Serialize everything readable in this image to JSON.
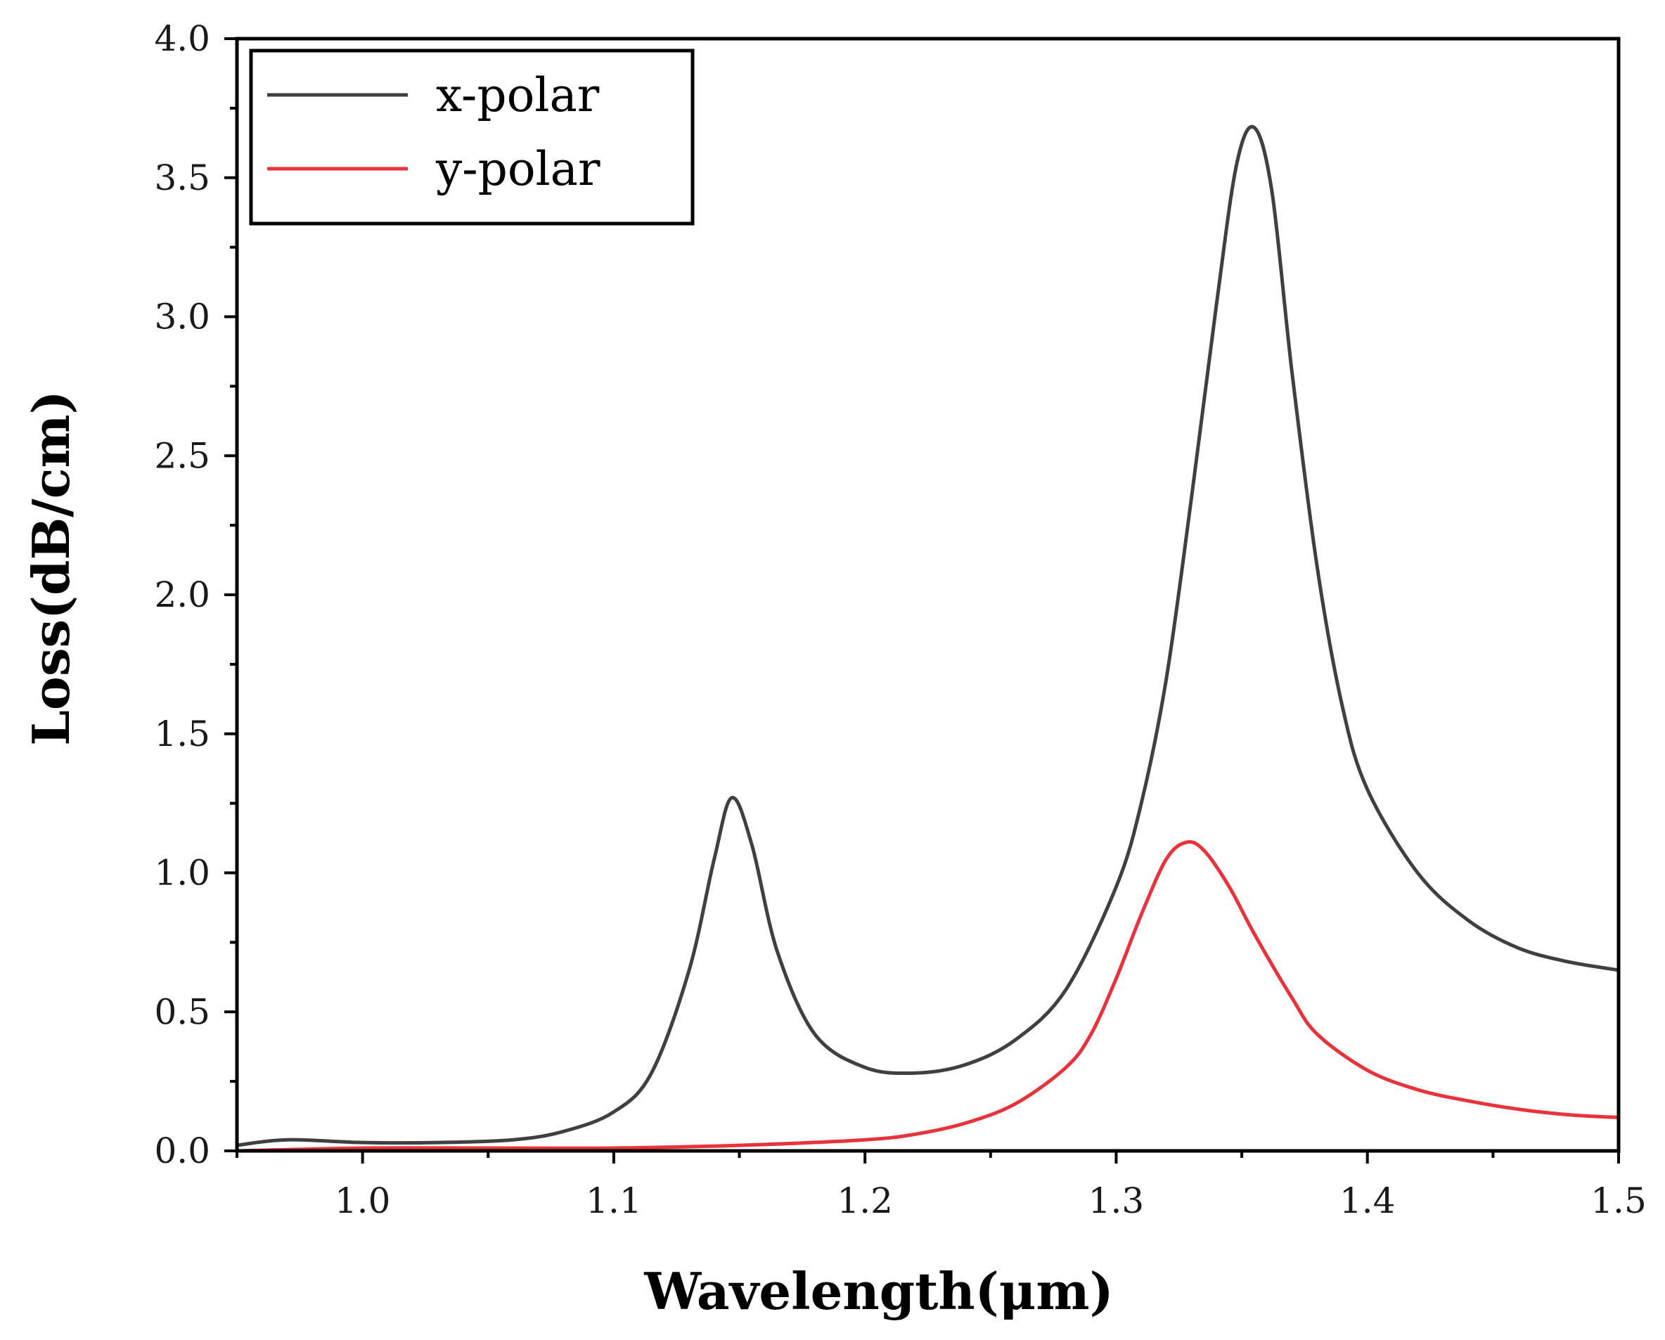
{
  "chart_data": {
    "type": "line",
    "title": "",
    "xlabel": "Wavelength(μm)",
    "ylabel": "Loss(dB/cm)",
    "xlim": [
      0.95,
      1.5
    ],
    "ylim": [
      0.0,
      4.0
    ],
    "grid": false,
    "legend_position": "top-left",
    "x_ticks": [
      1.0,
      1.1,
      1.2,
      1.3,
      1.4,
      1.5
    ],
    "x_tick_labels": [
      "1.0",
      "1.1",
      "1.2",
      "1.3",
      "1.4",
      "1.5"
    ],
    "y_ticks": [
      0.0,
      0.5,
      1.0,
      1.5,
      2.0,
      2.5,
      3.0,
      3.5,
      4.0
    ],
    "y_tick_labels": [
      "0.0",
      "0.5",
      "1.0",
      "1.5",
      "2.0",
      "2.5",
      "3.0",
      "3.5",
      "4.0"
    ],
    "series": [
      {
        "name": "x-polar",
        "color": "#404040",
        "x": [
          0.95,
          0.97,
          1.0,
          1.03,
          1.06,
          1.08,
          1.1,
          1.115,
          1.13,
          1.14,
          1.147,
          1.155,
          1.165,
          1.18,
          1.2,
          1.22,
          1.24,
          1.26,
          1.28,
          1.3,
          1.31,
          1.32,
          1.33,
          1.34,
          1.348,
          1.355,
          1.362,
          1.37,
          1.38,
          1.39,
          1.4,
          1.42,
          1.44,
          1.46,
          1.48,
          1.5
        ],
        "values": [
          0.02,
          0.04,
          0.03,
          0.03,
          0.04,
          0.07,
          0.14,
          0.28,
          0.65,
          1.05,
          1.27,
          1.1,
          0.72,
          0.42,
          0.3,
          0.28,
          0.31,
          0.4,
          0.58,
          0.95,
          1.25,
          1.7,
          2.35,
          3.05,
          3.55,
          3.68,
          3.45,
          2.8,
          2.1,
          1.6,
          1.3,
          1.0,
          0.83,
          0.73,
          0.68,
          0.65
        ]
      },
      {
        "name": "y-polar",
        "color": "#e8323c",
        "x": [
          0.95,
          1.0,
          1.05,
          1.1,
          1.15,
          1.2,
          1.22,
          1.24,
          1.26,
          1.28,
          1.29,
          1.3,
          1.31,
          1.32,
          1.328,
          1.335,
          1.345,
          1.355,
          1.37,
          1.38,
          1.4,
          1.42,
          1.44,
          1.46,
          1.48,
          1.5
        ],
        "values": [
          0.0,
          0.01,
          0.01,
          0.01,
          0.02,
          0.04,
          0.06,
          0.1,
          0.17,
          0.3,
          0.42,
          0.62,
          0.85,
          1.05,
          1.11,
          1.08,
          0.95,
          0.78,
          0.55,
          0.42,
          0.29,
          0.22,
          0.18,
          0.15,
          0.13,
          0.12
        ]
      }
    ]
  }
}
